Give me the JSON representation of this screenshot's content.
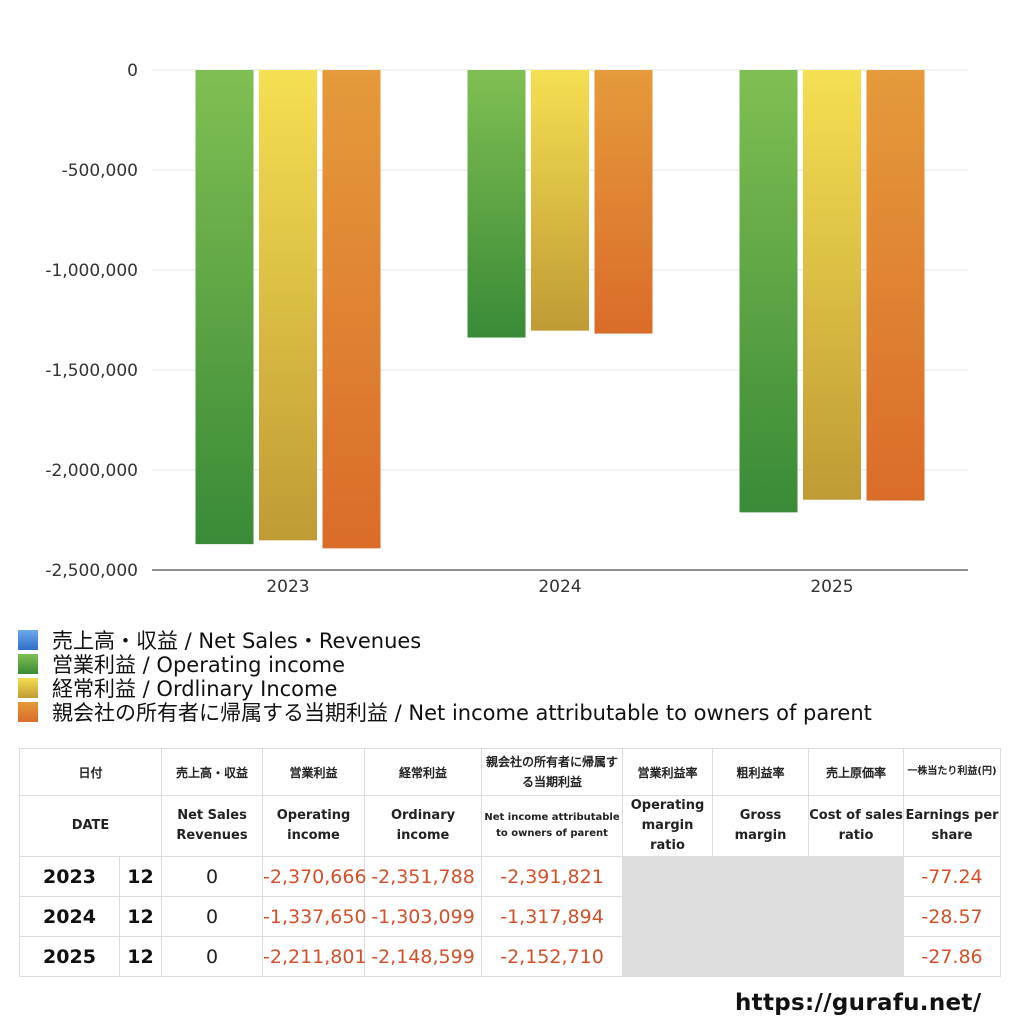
{
  "chart_data": {
    "type": "bar",
    "categories": [
      "2023",
      "2024",
      "2025"
    ],
    "series": [
      {
        "name": "売上高・収益 / Net Sales・Revenues",
        "values": [
          0,
          0,
          0
        ],
        "color": "#4a8fe0"
      },
      {
        "name": "営業利益 / Operating income",
        "values": [
          -2370666,
          -1337650,
          -2211801
        ],
        "color": "#4fa443"
      },
      {
        "name": "経常利益 / Ordlinary Income",
        "values": [
          -2351788,
          -1303099,
          -2148599
        ],
        "color": "#e8cf44"
      },
      {
        "name": "親会社の所有者に帰属する当期利益 / Net income attributable to owners of parent",
        "values": [
          -2391821,
          -1317894,
          -2152710
        ],
        "color": "#e5852e"
      }
    ],
    "ylim": [
      -2500000,
      0
    ],
    "yticks": [
      0,
      -500000,
      -1000000,
      -1500000,
      -2000000,
      -2500000
    ],
    "ytick_labels": [
      "0",
      "-500,000",
      "-1,000,000",
      "-1,500,000",
      "-2,000,000",
      "-2,500,000"
    ],
    "grid": true,
    "legend_position": "bottom-left"
  },
  "table": {
    "headers_jp": [
      "日付",
      "売上高・収益",
      "営業利益",
      "経常利益",
      "親会社の所有者に帰属する当期利益",
      "営業利益率",
      "粗利益率",
      "売上原価率",
      "一株当たり利益(円)"
    ],
    "headers_en": [
      "DATE",
      "Net Sales Revenues",
      "Operating income",
      "Ordinary income",
      "Net income attributable to owners of parent",
      "Operating margin ratio",
      "Gross margin",
      "Cost of sales ratio",
      "Earnings per share"
    ],
    "rows": [
      {
        "year": "2023",
        "month": "12",
        "sales": "0",
        "op": "-2,370,666",
        "ord": "-2,351,788",
        "net": "-2,391,821",
        "eps": "-77.24"
      },
      {
        "year": "2024",
        "month": "12",
        "sales": "0",
        "op": "-1,337,650",
        "ord": "-1,303,099",
        "net": "-1,317,894",
        "eps": "-28.57"
      },
      {
        "year": "2025",
        "month": "12",
        "sales": "0",
        "op": "-2,211,801",
        "ord": "-2,148,599",
        "net": "-2,152,710",
        "eps": "-27.86"
      }
    ]
  },
  "site_url": "https://gurafu.net/"
}
